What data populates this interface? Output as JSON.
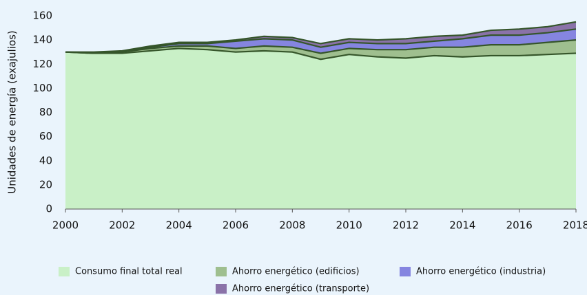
{
  "chart_data": {
    "type": "stacked_area",
    "ylabel": "Unidades de energía (exajulios)",
    "x": [
      2000,
      2001,
      2002,
      2003,
      2004,
      2005,
      2006,
      2007,
      2008,
      2009,
      2010,
      2011,
      2012,
      2013,
      2014,
      2015,
      2016,
      2017,
      2018
    ],
    "series": [
      {
        "name": "Consumo final total real",
        "color": "#c9f0c7",
        "values": [
          130,
          129,
          129,
          131,
          133,
          132,
          130,
          131,
          130,
          124,
          128,
          126,
          125,
          127,
          126,
          127,
          127,
          128,
          129
        ]
      },
      {
        "name": "Ahorro energético (edificios)",
        "color": "#9fbf8f",
        "values": [
          0,
          0,
          1,
          2,
          2,
          3,
          3,
          4,
          4,
          5,
          5,
          6,
          7,
          7,
          8,
          9,
          9,
          10,
          11
        ]
      },
      {
        "name": "Ahorro energético (industria)",
        "color": "#8585e0",
        "values": [
          0,
          0.5,
          0.5,
          1,
          2,
          2,
          6,
          6,
          6,
          5,
          5,
          5,
          5,
          5,
          7,
          8,
          8,
          8,
          9
        ]
      },
      {
        "name": "Ahorro energético (transporte)",
        "color": "#8a72a8",
        "values": [
          0,
          0.5,
          0.5,
          1,
          1,
          1,
          1,
          2,
          2,
          3,
          3,
          3,
          4,
          4,
          3,
          4,
          5,
          5,
          6
        ]
      }
    ],
    "line_color": "#35552a",
    "xlim": [
      2000,
      2018
    ],
    "xticks": [
      2000,
      2002,
      2004,
      2006,
      2008,
      2010,
      2012,
      2014,
      2016,
      2018
    ],
    "ylim": [
      0,
      160
    ],
    "yticks": [
      0,
      20,
      40,
      60,
      80,
      100,
      120,
      140,
      160
    ],
    "legend": "bottom"
  }
}
